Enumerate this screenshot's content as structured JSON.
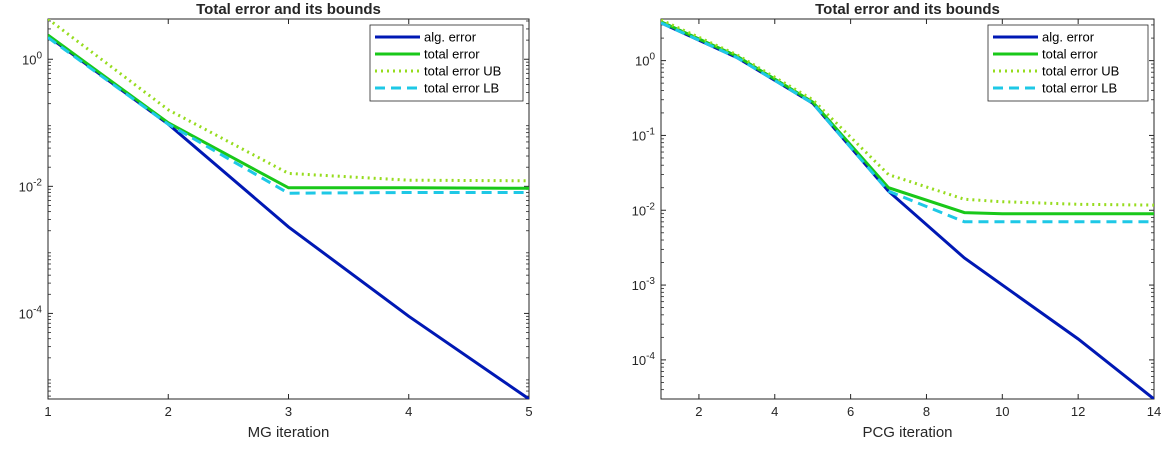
{
  "chart_data": [
    {
      "type": "line",
      "title": "Total error and its bounds",
      "xlabel": "MG iteration",
      "ylabel": "",
      "yscale": "log",
      "xlim": [
        1,
        5
      ],
      "ylim": [
        4.5e-06,
        4.3
      ],
      "xticks": [
        1,
        2,
        3,
        4,
        5
      ],
      "xtick_labels": [
        "1",
        "2",
        "3",
        "4",
        "5"
      ],
      "yticks": [
        0.0001,
        0.01,
        1
      ],
      "ytick_labels": [
        {
          "base": "10",
          "exp": "-4"
        },
        {
          "base": "10",
          "exp": "-2"
        },
        {
          "base": "10",
          "exp": "0"
        }
      ],
      "legend_position": "top-right",
      "series": [
        {
          "name": "alg. error",
          "color": "#0018B4",
          "style": "solid",
          "x": [
            1,
            2,
            3,
            4,
            5
          ],
          "y": [
            2.3,
            0.095,
            0.0023,
            9e-05,
            4.5e-06
          ]
        },
        {
          "name": "total error",
          "color": "#19C819",
          "style": "solid",
          "x": [
            1,
            2,
            3,
            4,
            5
          ],
          "y": [
            2.4,
            0.1,
            0.0095,
            0.0095,
            0.0093
          ]
        },
        {
          "name": "total error UB",
          "color": "#96DC1E",
          "style": "dotted",
          "x": [
            1,
            2,
            3,
            4,
            5
          ],
          "y": [
            4.3,
            0.16,
            0.016,
            0.0125,
            0.0122
          ]
        },
        {
          "name": "total error LB",
          "color": "#1EC8E6",
          "style": "dashed",
          "x": [
            1,
            2,
            3,
            4,
            5
          ],
          "y": [
            2.2,
            0.095,
            0.0078,
            0.008,
            0.008
          ]
        }
      ]
    },
    {
      "type": "line",
      "title": "Total error and its bounds",
      "xlabel": "PCG iteration",
      "ylabel": "",
      "yscale": "log",
      "xlim": [
        1,
        14
      ],
      "ylim": [
        3e-05,
        3.6
      ],
      "xticks": [
        2,
        4,
        6,
        8,
        10,
        12,
        14
      ],
      "xtick_labels": [
        "2",
        "4",
        "6",
        "8",
        "10",
        "12",
        "14"
      ],
      "yticks": [
        0.0001,
        0.001,
        0.01,
        0.1,
        1
      ],
      "ytick_labels": [
        {
          "base": "10",
          "exp": "-4"
        },
        {
          "base": "10",
          "exp": "-3"
        },
        {
          "base": "10",
          "exp": "-2"
        },
        {
          "base": "10",
          "exp": "-1"
        },
        {
          "base": "10",
          "exp": "0"
        }
      ],
      "legend_position": "top-right",
      "series": [
        {
          "name": "alg. error",
          "color": "#0018B4",
          "style": "solid",
          "x": [
            1,
            3,
            5,
            7,
            9,
            12,
            14
          ],
          "y": [
            3.2,
            1.1,
            0.27,
            0.018,
            0.0023,
            0.00019,
            3e-05
          ]
        },
        {
          "name": "total error",
          "color": "#19C819",
          "style": "solid",
          "x": [
            1,
            3,
            5,
            7,
            9,
            10,
            12,
            14
          ],
          "y": [
            3.3,
            1.15,
            0.28,
            0.02,
            0.0093,
            0.009,
            0.009,
            0.009
          ]
        },
        {
          "name": "total error UB",
          "color": "#96DC1E",
          "style": "dotted",
          "x": [
            1,
            3,
            5,
            7,
            9,
            10,
            12,
            14
          ],
          "y": [
            3.5,
            1.2,
            0.3,
            0.03,
            0.014,
            0.013,
            0.012,
            0.0117
          ]
        },
        {
          "name": "total error LB",
          "color": "#1EC8E6",
          "style": "dashed",
          "x": [
            1,
            3,
            5,
            7,
            9,
            10,
            12,
            14
          ],
          "y": [
            3.2,
            1.1,
            0.27,
            0.018,
            0.007,
            0.007,
            0.007,
            0.007
          ]
        }
      ]
    }
  ]
}
